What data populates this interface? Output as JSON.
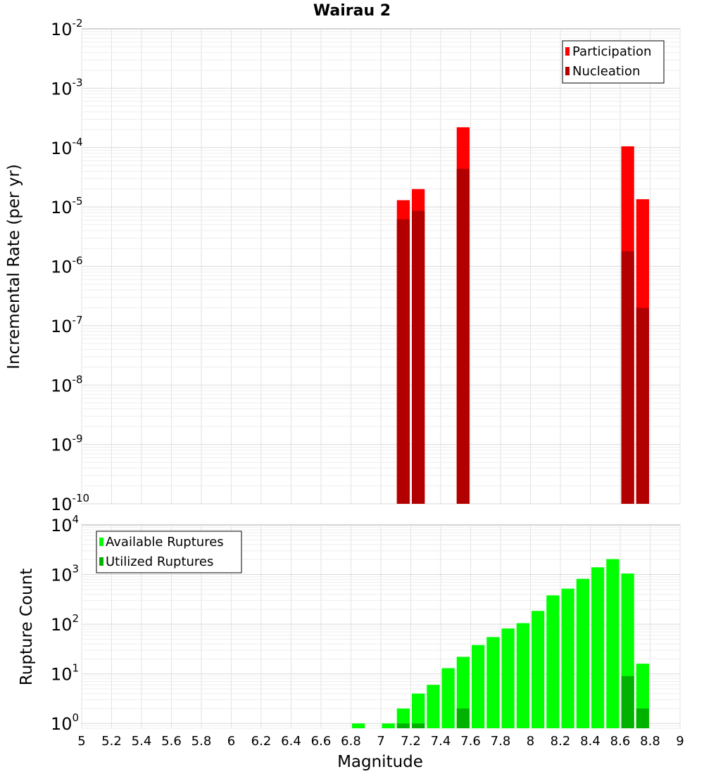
{
  "chart_data": [
    {
      "type": "bar",
      "title": "Wairau 2",
      "ylabel": "Incremental Rate (per yr)",
      "xlabel": "",
      "yscale": "log",
      "ylim": [
        1e-10,
        0.01
      ],
      "xlim": [
        5,
        9
      ],
      "legend": {
        "placement": "top-right"
      },
      "bar_width": 0.1,
      "series": [
        {
          "name": "Participation",
          "color": "#ff0000",
          "points": [
            [
              7.15,
              1.3e-05
            ],
            [
              7.25,
              2e-05
            ],
            [
              7.55,
              0.00022
            ],
            [
              8.65,
              0.000105
            ],
            [
              8.75,
              1.35e-05
            ]
          ]
        },
        {
          "name": "Nucleation",
          "color": "#b20000",
          "points": [
            [
              7.15,
              6.2e-06
            ],
            [
              7.25,
              8.6e-06
            ],
            [
              7.55,
              4.4e-05
            ],
            [
              8.65,
              1.8e-06
            ],
            [
              8.75,
              2e-07
            ]
          ]
        }
      ]
    },
    {
      "type": "bar",
      "title": "",
      "ylabel": "Rupture Count",
      "xlabel": "Magnitude",
      "yscale": "log",
      "ylim": [
        0.8,
        10000
      ],
      "xlim": [
        5,
        9
      ],
      "legend": {
        "placement": "top-left"
      },
      "bar_width": 0.1,
      "series": [
        {
          "name": "Available Ruptures",
          "color": "#00ff00",
          "points": [
            [
              6.85,
              1
            ],
            [
              7.05,
              1
            ],
            [
              7.15,
              2
            ],
            [
              7.25,
              4
            ],
            [
              7.35,
              6
            ],
            [
              7.45,
              13
            ],
            [
              7.55,
              22
            ],
            [
              7.65,
              38
            ],
            [
              7.75,
              55
            ],
            [
              7.85,
              82
            ],
            [
              7.95,
              105
            ],
            [
              8.05,
              185
            ],
            [
              8.15,
              380
            ],
            [
              8.25,
              520
            ],
            [
              8.35,
              820
            ],
            [
              8.45,
              1400
            ],
            [
              8.55,
              2050
            ],
            [
              8.65,
              1050
            ],
            [
              8.75,
              16
            ]
          ]
        },
        {
          "name": "Utilized Ruptures",
          "color": "#00b200",
          "points": [
            [
              7.15,
              1
            ],
            [
              7.25,
              1
            ],
            [
              7.55,
              2
            ],
            [
              8.65,
              9
            ],
            [
              8.75,
              2
            ]
          ]
        }
      ]
    }
  ],
  "x_ticks": [
    "5",
    "5.2",
    "5.4",
    "5.6",
    "5.8",
    "6",
    "6.2",
    "6.4",
    "6.6",
    "6.8",
    "7",
    "7.2",
    "7.4",
    "7.6",
    "7.8",
    "8",
    "8.2",
    "8.4",
    "8.6",
    "8.8",
    "9"
  ],
  "top_y_ticks": [
    {
      "base": "10",
      "exp": "-2"
    },
    {
      "base": "10",
      "exp": "-3"
    },
    {
      "base": "10",
      "exp": "-4"
    },
    {
      "base": "10",
      "exp": "-5"
    },
    {
      "base": "10",
      "exp": "-6"
    },
    {
      "base": "10",
      "exp": "-7"
    },
    {
      "base": "10",
      "exp": "-8"
    },
    {
      "base": "10",
      "exp": "-9"
    },
    {
      "base": "10",
      "exp": "-10"
    }
  ],
  "bottom_y_ticks": [
    {
      "base": "10",
      "exp": "4"
    },
    {
      "base": "10",
      "exp": "3"
    },
    {
      "base": "10",
      "exp": "2"
    },
    {
      "base": "10",
      "exp": "1"
    },
    {
      "base": "10",
      "exp": "0"
    }
  ]
}
